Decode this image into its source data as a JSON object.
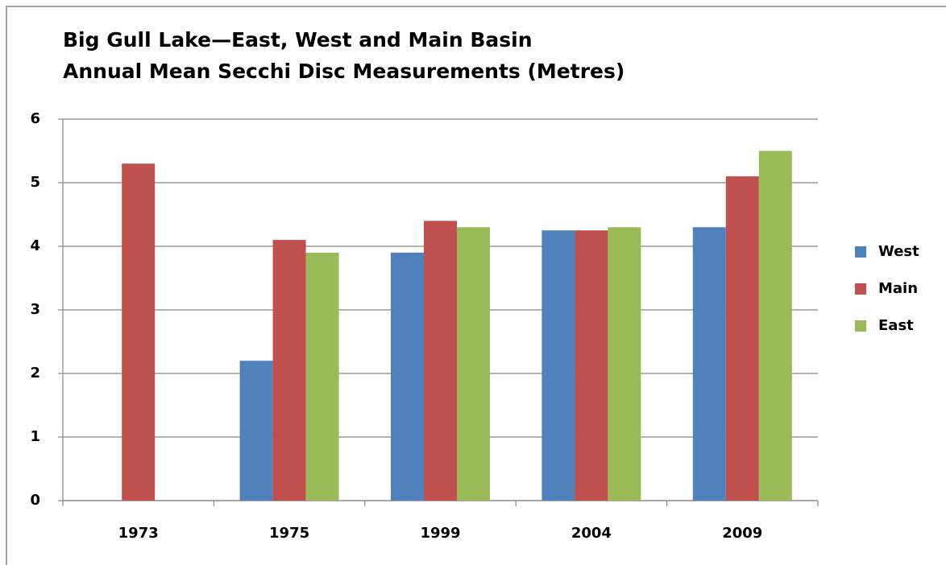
{
  "chart_data": {
    "type": "bar",
    "title": "Big Gull Lake—East, West and Main Basin",
    "subtitle": "Annual Mean Secchi Disc Measurements (Metres)",
    "categories": [
      "1973",
      "1975",
      "1999",
      "2004",
      "2009"
    ],
    "series": [
      {
        "name": "West",
        "color": "#4f81bd",
        "values": [
          null,
          2.2,
          3.9,
          4.25,
          4.3
        ]
      },
      {
        "name": "Main",
        "color": "#c0504d",
        "values": [
          5.3,
          4.1,
          4.4,
          4.25,
          5.1
        ]
      },
      {
        "name": "East",
        "color": "#9bbb59",
        "values": [
          null,
          3.9,
          4.3,
          4.3,
          5.5
        ]
      }
    ],
    "ylim": [
      0,
      6
    ],
    "yticks": [
      0,
      1,
      2,
      3,
      4,
      5,
      6
    ],
    "grid": true,
    "legend": "right"
  }
}
